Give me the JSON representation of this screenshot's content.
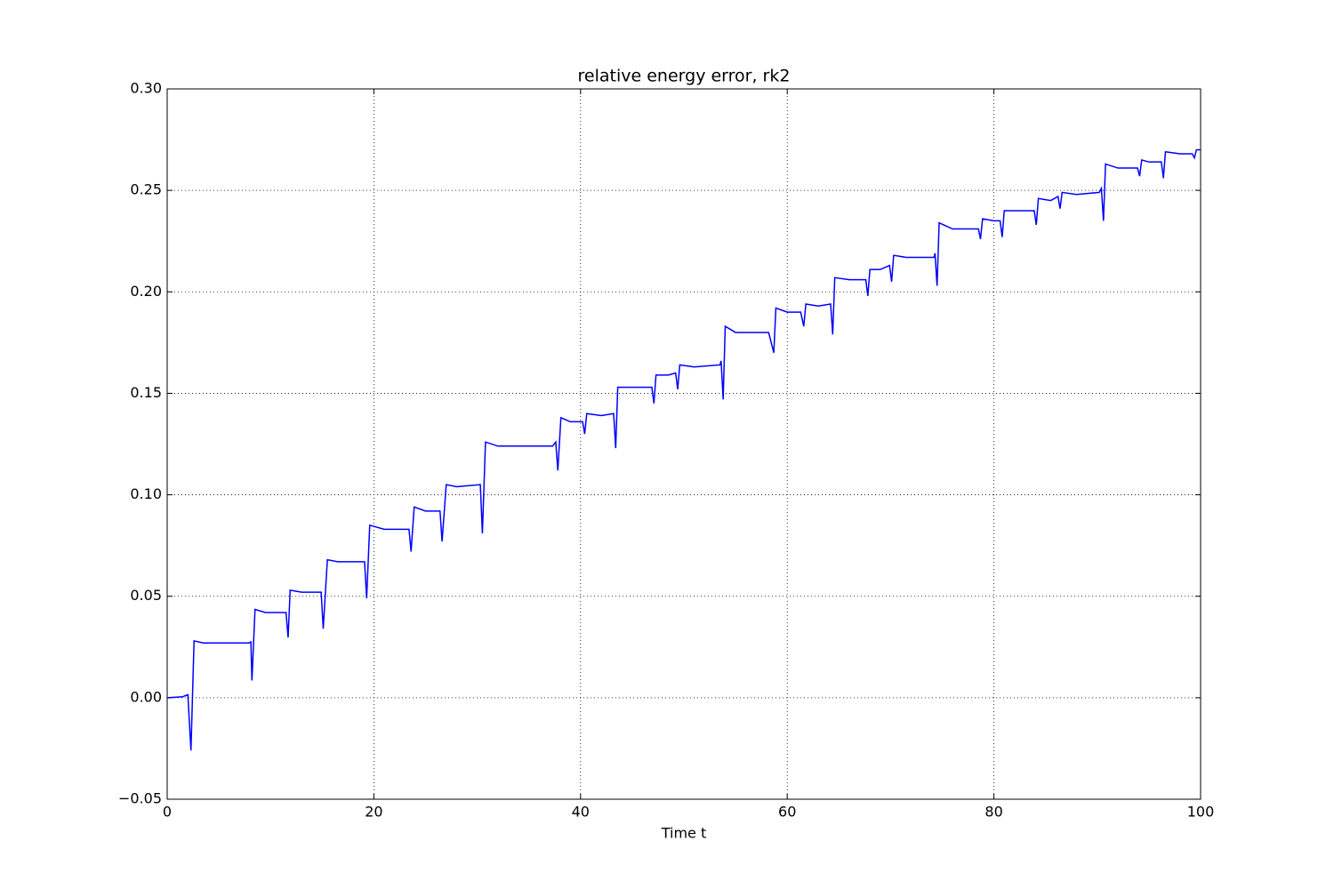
{
  "chart_data": {
    "type": "line",
    "title": "relative energy error, rk2",
    "xlabel": "Time t",
    "x": [
      0,
      1.5,
      2.0,
      2.3,
      2.6,
      3.5,
      7.9,
      8.1,
      8.2,
      8.5,
      9.5,
      11.5,
      11.7,
      11.9,
      13,
      14.9,
      15.1,
      15.5,
      16.5,
      19.1,
      19.3,
      19.6,
      21,
      23.4,
      23.6,
      23.9,
      25,
      26.4,
      26.6,
      27,
      28,
      30.3,
      30.5,
      30.8,
      32,
      37.3,
      37.6,
      37.8,
      38.1,
      39,
      40.2,
      40.4,
      40.6,
      42,
      43.2,
      43.4,
      43.6,
      45,
      46.9,
      47.1,
      47.3,
      48.5,
      49.2,
      49.4,
      49.6,
      51,
      53.5,
      53.6,
      53.8,
      54.0,
      55,
      58.2,
      58.7,
      58.9,
      60,
      61.3,
      61.6,
      61.8,
      63,
      64.2,
      64.4,
      64.6,
      66,
      67.6,
      67.8,
      68.0,
      69,
      69.9,
      70.1,
      70.3,
      71.5,
      74.2,
      74.3,
      74.5,
      74.7,
      76,
      78.5,
      78.7,
      78.9,
      80,
      80.6,
      80.8,
      81,
      82,
      83.9,
      84.1,
      84.3,
      85.5,
      86.2,
      86.4,
      86.6,
      88,
      90.2,
      90.4,
      90.6,
      90.8,
      92,
      93.9,
      94.1,
      94.3,
      95,
      96.2,
      96.4,
      96.6,
      98,
      99.2,
      99.4,
      99.6,
      100
    ],
    "series": [
      {
        "name": "relative energy error",
        "color": "#0000ff",
        "values": [
          0.0,
          0.0005,
          0.0015,
          -0.026,
          0.028,
          0.027,
          0.027,
          0.0275,
          0.0085,
          0.0435,
          0.042,
          0.042,
          0.0297,
          0.053,
          0.052,
          0.052,
          0.034,
          0.068,
          0.067,
          0.067,
          0.049,
          0.085,
          0.083,
          0.083,
          0.072,
          0.094,
          0.092,
          0.092,
          0.077,
          0.105,
          0.104,
          0.105,
          0.081,
          0.126,
          0.124,
          0.124,
          0.126,
          0.112,
          0.138,
          0.136,
          0.136,
          0.13,
          0.14,
          0.139,
          0.14,
          0.123,
          0.153,
          0.153,
          0.153,
          0.145,
          0.159,
          0.159,
          0.16,
          0.152,
          0.164,
          0.163,
          0.164,
          0.166,
          0.147,
          0.183,
          0.18,
          0.18,
          0.17,
          0.192,
          0.19,
          0.19,
          0.183,
          0.194,
          0.193,
          0.194,
          0.179,
          0.207,
          0.206,
          0.206,
          0.198,
          0.211,
          0.211,
          0.213,
          0.205,
          0.218,
          0.217,
          0.217,
          0.219,
          0.203,
          0.234,
          0.231,
          0.231,
          0.226,
          0.236,
          0.235,
          0.235,
          0.227,
          0.24,
          0.24,
          0.24,
          0.233,
          0.246,
          0.245,
          0.247,
          0.241,
          0.249,
          0.248,
          0.249,
          0.251,
          0.235,
          0.263,
          0.261,
          0.261,
          0.257,
          0.265,
          0.264,
          0.264,
          0.256,
          0.269,
          0.268,
          0.268,
          0.266,
          0.27,
          0.27
        ]
      }
    ],
    "xlim": [
      0,
      100
    ],
    "xticks": [
      0,
      20,
      40,
      60,
      80,
      100
    ],
    "ylim": [
      -0.05,
      0.3
    ],
    "yticks": [
      {
        "value": -0.05,
        "label": "−0.05"
      },
      {
        "value": 0.0,
        "label": "0.00"
      },
      {
        "value": 0.05,
        "label": "0.05"
      },
      {
        "value": 0.1,
        "label": "0.10"
      },
      {
        "value": 0.15,
        "label": "0.15"
      },
      {
        "value": 0.2,
        "label": "0.20"
      },
      {
        "value": 0.25,
        "label": "0.25"
      },
      {
        "value": 0.3,
        "label": "0.30"
      }
    ],
    "grid": true
  }
}
